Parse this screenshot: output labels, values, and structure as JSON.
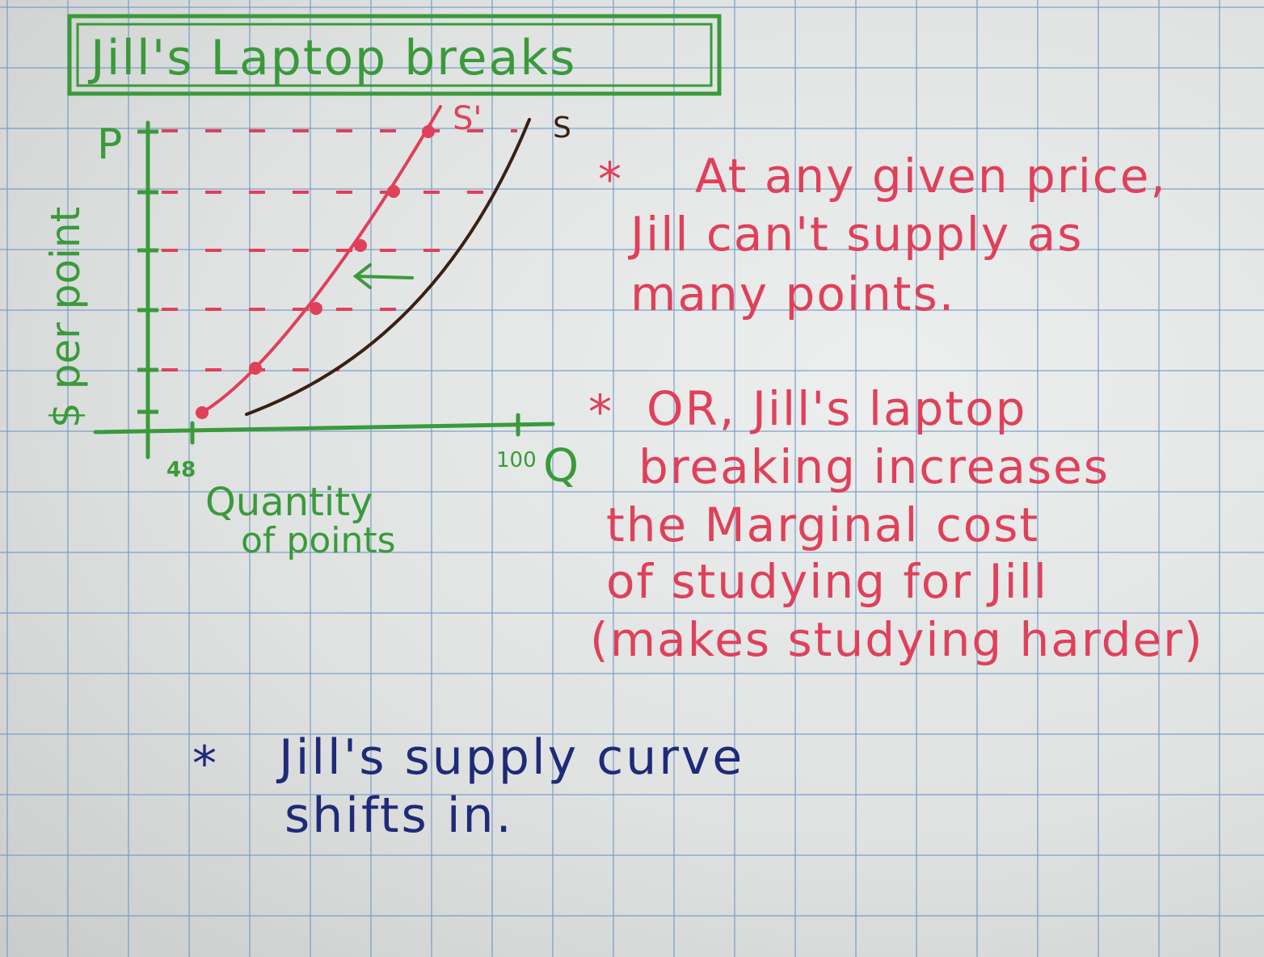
{
  "title": "Jill's Laptop breaks",
  "axes": {
    "y_label": "$ per point",
    "y_letter": "P",
    "x_label_line1": "Quantity",
    "x_label_line2": "of points",
    "x_letter": "Q",
    "x_tick_low": "48",
    "x_tick_high": "100"
  },
  "curves": {
    "original_label": "S",
    "shifted_label": "S'"
  },
  "notes": {
    "star": "*",
    "note1": [
      "At any given price,",
      "Jill can't supply as",
      "many points."
    ],
    "note2": [
      "OR, Jill's laptop",
      "breaking increases",
      "the Marginal cost",
      "of studying for Jill",
      "(makes studying harder)"
    ],
    "conclusion": [
      "Jill's supply curve",
      "shifts in."
    ]
  },
  "colors": {
    "green": "#3a9a3a",
    "red": "#e0405a",
    "brown": "#3a1f14",
    "blue": "#1f2a78"
  }
}
